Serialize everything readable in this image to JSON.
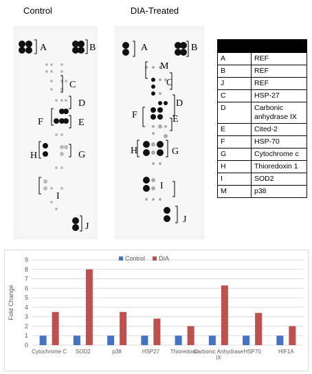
{
  "blot_titles": {
    "control": "Control",
    "dia": "DIA-Treated"
  },
  "legend_table": {
    "rows": [
      {
        "code": "A",
        "name": "REF"
      },
      {
        "code": "B",
        "name": "REF"
      },
      {
        "code": "J",
        "name": "REF"
      },
      {
        "code": "C",
        "name": "HSP-27"
      },
      {
        "code": "D",
        "name": "Carbonic anhydrase IX"
      },
      {
        "code": "E",
        "name": "Cited-2"
      },
      {
        "code": "F",
        "name": "HSP-70"
      },
      {
        "code": "G",
        "name": "Cytochrome c"
      },
      {
        "code": "H",
        "name": "Thioredoxin 1"
      },
      {
        "code": "I",
        "name": "SOD2"
      },
      {
        "code": "M",
        "name": "p38"
      }
    ]
  },
  "blot_labels": {
    "control": [
      "A",
      "B",
      "C",
      "D",
      "F",
      "E",
      "H",
      "G",
      "I",
      "J"
    ],
    "dia": [
      "A",
      "B",
      "M",
      "C",
      "D",
      "F",
      "E",
      "H",
      "G",
      "I",
      "J"
    ]
  },
  "colors": {
    "control": "#4472c4",
    "dia": "#c0504d",
    "grid": "#d9d9d9"
  },
  "chart_data": {
    "type": "bar",
    "categories": [
      "Cytochrome C",
      "SOD2",
      "p38",
      "HSP27",
      "Thioredoxin",
      "Carbonic Anhydrase IX",
      "HSP70",
      "HIF1A"
    ],
    "series": [
      {
        "name": "Control",
        "values": [
          1,
          1,
          1,
          1,
          1,
          1,
          1,
          1
        ]
      },
      {
        "name": "DIA",
        "values": [
          3.5,
          8.0,
          3.5,
          2.8,
          2.0,
          6.3,
          3.4,
          2.0
        ]
      }
    ],
    "ylabel": "Fold Change",
    "ylim": [
      0,
      9
    ],
    "yticks": [
      0,
      1,
      2,
      3,
      4,
      5,
      6,
      7,
      8,
      9
    ],
    "grid": true,
    "legend_position": "top"
  }
}
